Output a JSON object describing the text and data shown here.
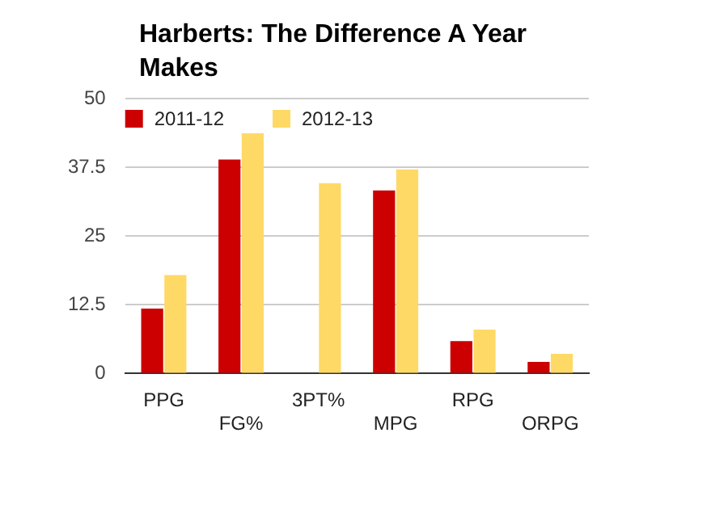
{
  "chart_data": {
    "type": "bar",
    "title": "Harberts: The Difference A Year Makes",
    "categories": [
      "PPG",
      "FG%",
      "3PT%",
      "MPG",
      "RPG",
      "ORPG"
    ],
    "series": [
      {
        "name": "2011-12",
        "color": "#cc0000",
        "values": [
          11.8,
          38.9,
          0,
          33.3,
          5.9,
          2.1
        ]
      },
      {
        "name": "2012-13",
        "color": "#ffd966",
        "values": [
          17.9,
          43.7,
          34.6,
          37.1,
          8.0,
          3.6
        ]
      }
    ],
    "ylim": [
      0,
      50
    ],
    "yticks": [
      0,
      12.5,
      25,
      37.5,
      50
    ],
    "grid": "y",
    "legend": "top left"
  }
}
